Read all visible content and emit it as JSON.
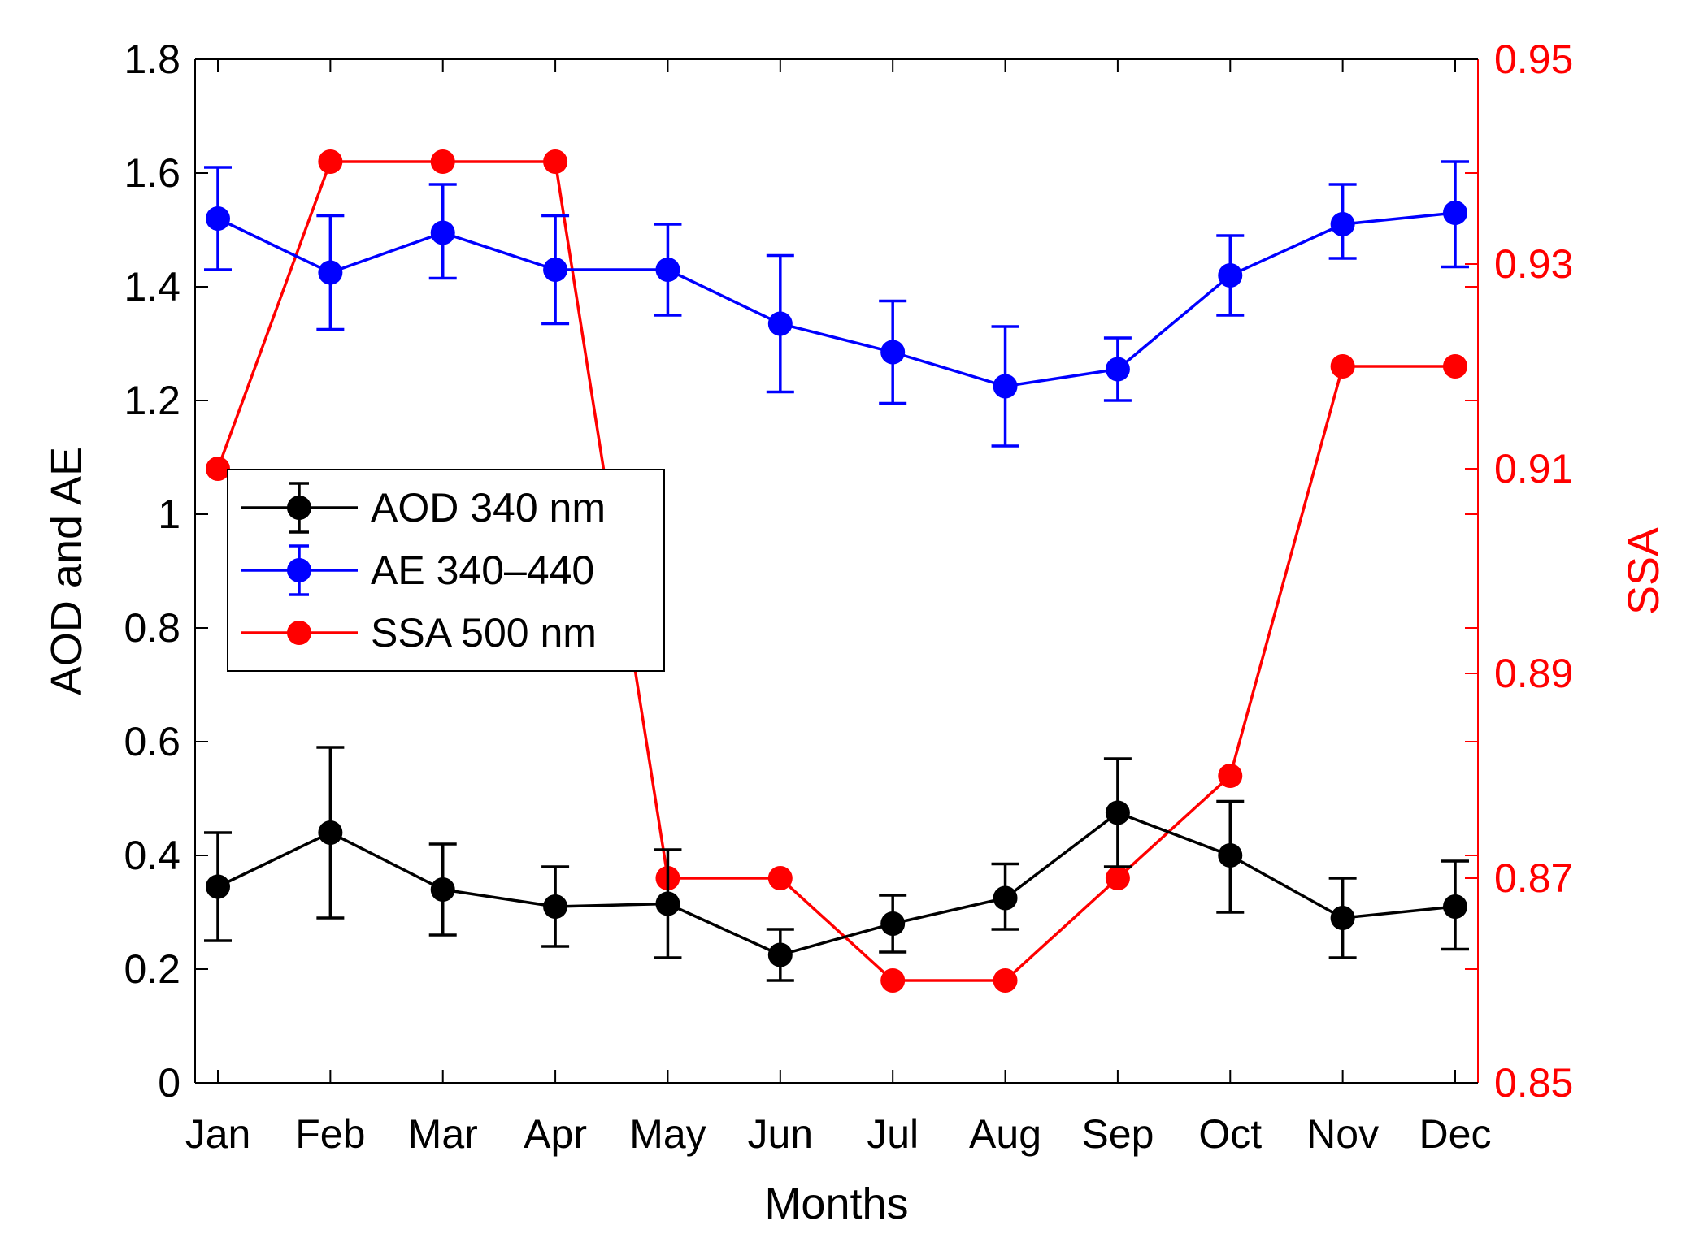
{
  "chart_data": {
    "type": "line",
    "categories": [
      "Jan",
      "Feb",
      "Mar",
      "Apr",
      "May",
      "Jun",
      "Jul",
      "Aug",
      "Sep",
      "Oct",
      "Nov",
      "Dec"
    ],
    "xlabel": "Months",
    "ylabel_left": "AOD and AE",
    "ylabel_right": "SSA",
    "ylim_left": [
      0,
      1.8
    ],
    "ylim_right": [
      0.85,
      0.95
    ],
    "yticks_left": [
      "0",
      "0.2",
      "0.4",
      "0.6",
      "0.8",
      "1",
      "1.2",
      "1.4",
      "1.6",
      "1.8"
    ],
    "yticks_right": [
      "0.85",
      "0.87",
      "0.89",
      "0.91",
      "0.93",
      "0.95"
    ],
    "grid": false,
    "legend_position": "left-center",
    "series": [
      {
        "name": "AOD 340 nm",
        "axis": "left",
        "color": "#000000",
        "values": [
          0.345,
          0.44,
          0.34,
          0.31,
          0.315,
          0.225,
          0.28,
          0.325,
          0.475,
          0.4,
          0.29,
          0.31
        ],
        "err_low": [
          0.25,
          0.29,
          0.26,
          0.24,
          0.22,
          0.18,
          0.23,
          0.27,
          0.38,
          0.3,
          0.22,
          0.235
        ],
        "err_high": [
          0.44,
          0.59,
          0.42,
          0.38,
          0.41,
          0.27,
          0.33,
          0.385,
          0.57,
          0.495,
          0.36,
          0.39
        ]
      },
      {
        "name": "AE 340–440",
        "axis": "left",
        "color": "#0000ff",
        "values": [
          1.52,
          1.425,
          1.495,
          1.43,
          1.43,
          1.335,
          1.285,
          1.225,
          1.255,
          1.42,
          1.51,
          1.53
        ],
        "err_low": [
          1.43,
          1.325,
          1.415,
          1.335,
          1.35,
          1.215,
          1.195,
          1.12,
          1.2,
          1.35,
          1.45,
          1.435
        ],
        "err_high": [
          1.61,
          1.525,
          1.58,
          1.525,
          1.51,
          1.455,
          1.375,
          1.33,
          1.31,
          1.49,
          1.58,
          1.62
        ]
      },
      {
        "name": "SSA 500 nm",
        "axis": "right",
        "color": "#ff0000",
        "values": [
          0.91,
          0.94,
          0.94,
          0.94,
          0.87,
          0.87,
          0.86,
          0.86,
          0.87,
          0.88,
          0.92,
          0.92
        ]
      }
    ]
  }
}
